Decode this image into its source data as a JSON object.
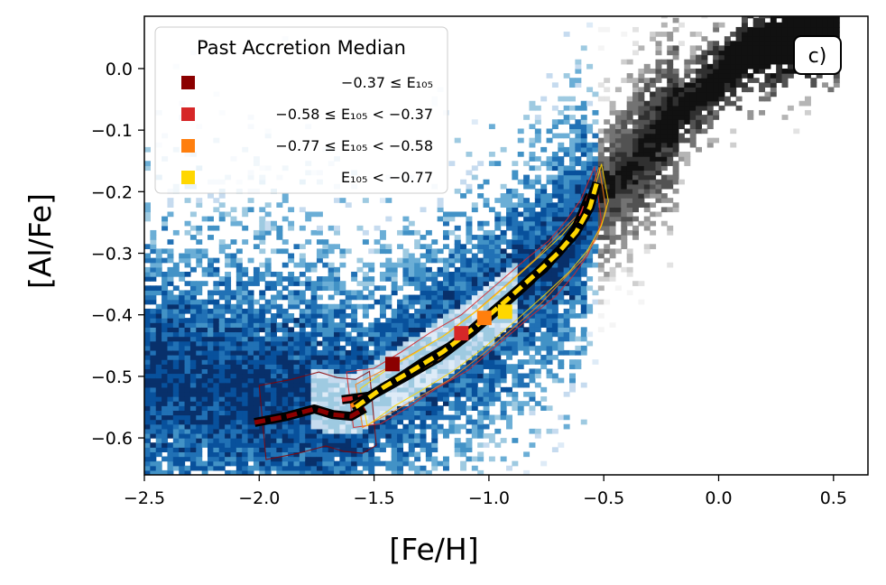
{
  "chart_data": {
    "type": "scatter",
    "panel_label": "c)",
    "xlabel": "[Fe/H]",
    "ylabel": "[Al/Fe]",
    "xlim": [
      -2.5,
      0.65
    ],
    "ylim": [
      -0.66,
      0.085
    ],
    "xticks": [
      {
        "value": -2.5,
        "label": "−2.5"
      },
      {
        "value": -2.0,
        "label": "−2.0"
      },
      {
        "value": -1.5,
        "label": "−1.5"
      },
      {
        "value": -1.0,
        "label": "−1.0"
      },
      {
        "value": -0.5,
        "label": "−0.5"
      },
      {
        "value": 0.0,
        "label": "0.0"
      },
      {
        "value": 0.5,
        "label": "0.5"
      }
    ],
    "yticks": [
      {
        "value": 0.0,
        "label": "0.0"
      },
      {
        "value": -0.1,
        "label": "−0.1"
      },
      {
        "value": -0.2,
        "label": "−0.2"
      },
      {
        "value": -0.3,
        "label": "−0.3"
      },
      {
        "value": -0.4,
        "label": "−0.4"
      },
      {
        "value": -0.5,
        "label": "−0.5"
      },
      {
        "value": -0.6,
        "label": "−0.6"
      }
    ],
    "legend": {
      "title": "Past Accretion Median",
      "location": "upper-left",
      "entries": [
        {
          "label": "−0.37 ≤ E₁₀₅",
          "color": "#8b0000"
        },
        {
          "label": "−0.58 ≤ E₁₀₅ < −0.37",
          "color": "#d62728"
        },
        {
          "label": "−0.77 ≤ E₁₀₅ < −0.58",
          "color": "#ff7f0e"
        },
        {
          "label": "E₁₀₅ < −0.77",
          "color": "#ffd700"
        }
      ]
    },
    "background_density": {
      "blue_colormap": "Blues",
      "gray_colormap": "Greys",
      "ridge_points": [
        {
          "x": -2.5,
          "y": -0.5
        },
        {
          "x": -2.0,
          "y": -0.53
        },
        {
          "x": -1.6,
          "y": -0.55
        },
        {
          "x": -1.3,
          "y": -0.48
        },
        {
          "x": -1.0,
          "y": -0.4
        },
        {
          "x": -0.7,
          "y": -0.3
        },
        {
          "x": -0.5,
          "y": -0.2
        },
        {
          "x": -0.2,
          "y": -0.08
        },
        {
          "x": 0.1,
          "y": 0.02
        },
        {
          "x": 0.45,
          "y": 0.07
        }
      ]
    },
    "series": [
      {
        "name": "−0.37 ≤ E₁₀₅",
        "color": "#8b0000",
        "median_marker": {
          "x": -1.42,
          "y": -0.48
        },
        "x": [
          -2.02,
          -1.88,
          -1.76,
          -1.68,
          -1.6,
          -1.54
        ],
        "y": [
          -0.575,
          -0.565,
          -0.553,
          -0.562,
          -0.565,
          -0.552
        ]
      },
      {
        "name": "−0.58 ≤ E₁₀₅ < −0.37",
        "color": "#d62728",
        "median_marker": {
          "x": -1.12,
          "y": -0.43
        },
        "x": [
          -1.64,
          -1.52,
          -1.4,
          -1.28,
          -1.14,
          -1.0,
          -0.86,
          -0.76,
          -0.68,
          -0.62,
          -0.56
        ],
        "y": [
          -0.538,
          -0.532,
          -0.505,
          -0.475,
          -0.445,
          -0.4,
          -0.355,
          -0.325,
          -0.29,
          -0.258,
          -0.205
        ]
      },
      {
        "name": "−0.77 ≤ E₁₀₅ < −0.58",
        "color": "#ff7f0e",
        "median_marker": {
          "x": -1.02,
          "y": -0.405
        },
        "x": [
          -1.6,
          -1.48,
          -1.36,
          -1.22,
          -1.08,
          -0.94,
          -0.82,
          -0.72,
          -0.64,
          -0.58,
          -0.54
        ],
        "y": [
          -0.548,
          -0.525,
          -0.5,
          -0.47,
          -0.43,
          -0.385,
          -0.345,
          -0.305,
          -0.275,
          -0.24,
          -0.195
        ]
      },
      {
        "name": "E₁₀₅ < −0.77",
        "color": "#ffd700",
        "median_marker": {
          "x": -0.93,
          "y": -0.395
        },
        "x": [
          -1.58,
          -1.46,
          -1.34,
          -1.2,
          -1.06,
          -0.92,
          -0.8,
          -0.7,
          -0.62,
          -0.56,
          -0.53
        ],
        "y": [
          -0.55,
          -0.518,
          -0.492,
          -0.46,
          -0.42,
          -0.375,
          -0.335,
          -0.3,
          -0.265,
          -0.225,
          -0.185
        ]
      }
    ]
  }
}
